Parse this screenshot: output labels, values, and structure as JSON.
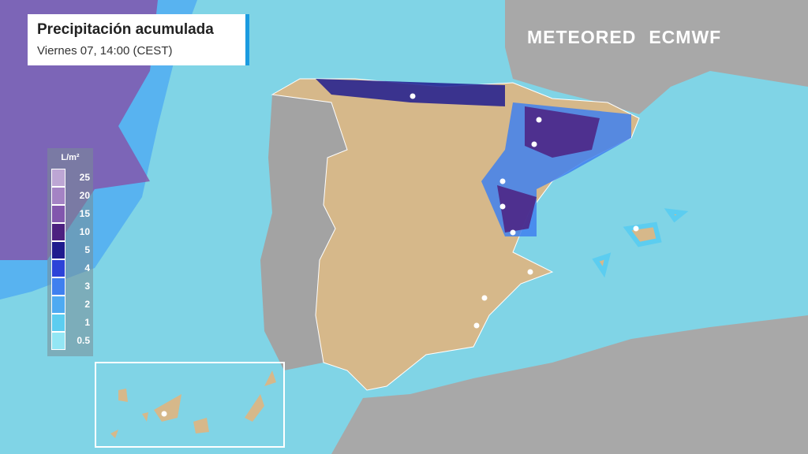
{
  "header": {
    "title": "Precipitación acumulada",
    "subtitle": "Viernes 07, 14:00 (CEST)"
  },
  "branding": {
    "provider": "METEORED",
    "model": "ECMWF"
  },
  "legend": {
    "unit": "L/m²",
    "levels": [
      {
        "value": 25,
        "color": "#bda6d4"
      },
      {
        "value": 20,
        "color": "#a483c4"
      },
      {
        "value": 15,
        "color": "#8257ad"
      },
      {
        "value": 10,
        "color": "#4c2180"
      },
      {
        "value": 5,
        "color": "#1f1b8e"
      },
      {
        "value": 4,
        "color": "#2c43d8"
      },
      {
        "value": 3,
        "color": "#3f80ef"
      },
      {
        "value": 2,
        "color": "#4eaaf2"
      },
      {
        "value": 1,
        "color": "#5ccdf0"
      },
      {
        "value": 0.5,
        "color": "#93e6f4"
      }
    ]
  }
}
